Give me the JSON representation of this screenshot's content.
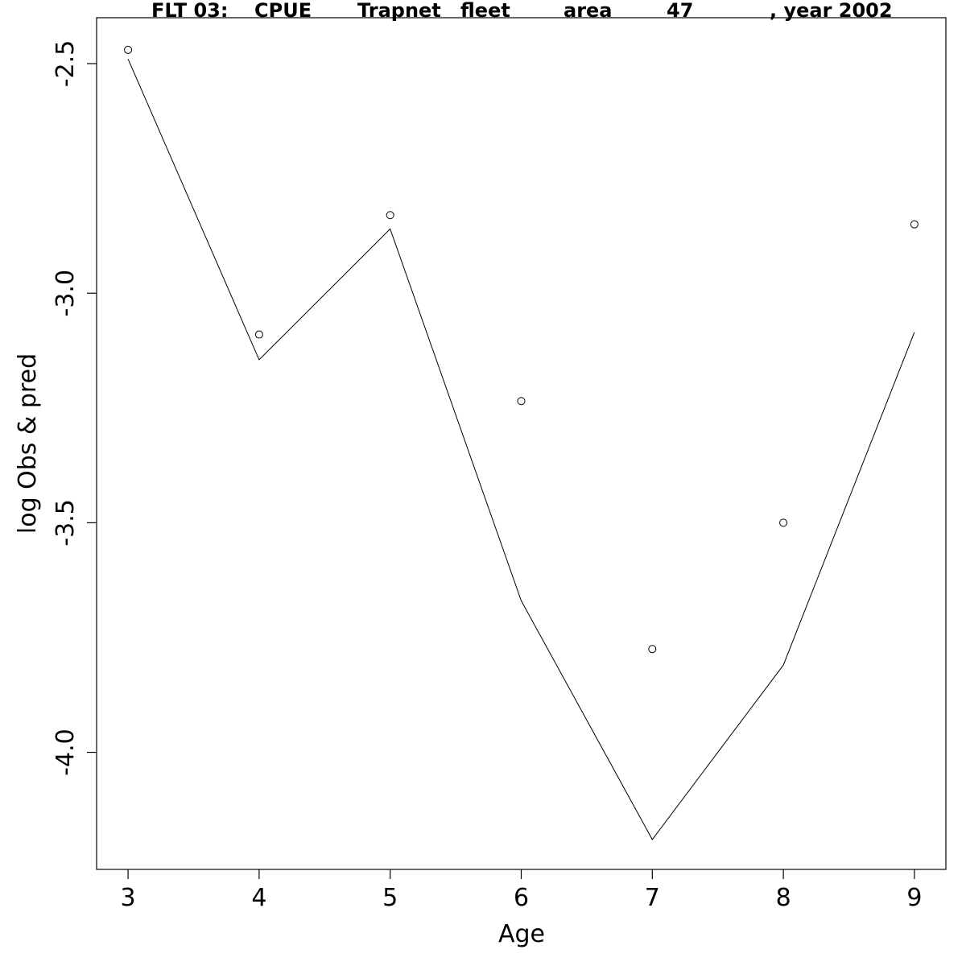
{
  "chart_data": {
    "type": "line",
    "title_parts": [
      "FLT 03:",
      "CPUE",
      "Trapnet",
      "fleet",
      "area",
      "47",
      ", year 2002"
    ],
    "xlabel": "Age",
    "ylabel": "log Obs & pred",
    "x": [
      3,
      4,
      5,
      6,
      7,
      8,
      9
    ],
    "x_ticks": [
      "3",
      "4",
      "5",
      "6",
      "7",
      "8",
      "9"
    ],
    "y_ticks": [
      "-2.5",
      "-3.0",
      "-3.5",
      "-4.0"
    ],
    "y_tick_values": [
      -2.5,
      -3.0,
      -3.5,
      -4.0
    ],
    "xlim": [
      2.76,
      9.24
    ],
    "ylim": [
      -4.255,
      -2.4
    ],
    "series": [
      {
        "values": [
          -2.47,
          -3.09,
          -2.83,
          -3.235,
          -3.775,
          -3.5,
          -2.85
        ]
      },
      {
        "values": [
          -2.49,
          -3.145,
          -2.86,
          -3.67,
          -4.19,
          -3.81,
          -3.085
        ]
      }
    ]
  }
}
